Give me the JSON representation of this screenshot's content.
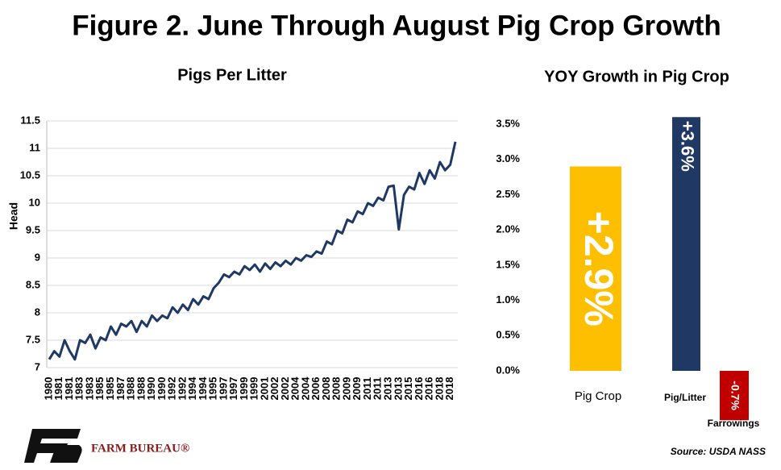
{
  "title": "Figure 2. June Through August Pig Crop Growth",
  "source": "Source:  USDA NASS",
  "logo_text": "FARM BUREAU®",
  "chart_data": [
    {
      "type": "line",
      "title": "Pigs Per Litter",
      "y_label": "Head",
      "color": "#1F3864",
      "ylim": [
        7,
        11.5
      ],
      "yticks": [
        7,
        7.5,
        8,
        8.5,
        9,
        9.5,
        10,
        10.5,
        11,
        11.5
      ],
      "categories": [
        "1980",
        null,
        "1981",
        null,
        "1981",
        null,
        "1983",
        null,
        "1983",
        null,
        "1985",
        null,
        "1985",
        null,
        "1987",
        null,
        "1988",
        null,
        "1988",
        null,
        "1990",
        null,
        "1990",
        null,
        "1992",
        null,
        "1992",
        null,
        "1994",
        null,
        "1994",
        null,
        "1995",
        null,
        "1997",
        null,
        "1997",
        null,
        "1999",
        null,
        "1999",
        null,
        "2001",
        null,
        "2002",
        null,
        "2002",
        null,
        "2004",
        null,
        "2004",
        null,
        "2006",
        null,
        "2008",
        null,
        "2008",
        null,
        "2009",
        null,
        "2009",
        null,
        "2011",
        null,
        "2011",
        null,
        "2013",
        null,
        "2013",
        null,
        "2015",
        null,
        "2016",
        null,
        "2016",
        null,
        "2018",
        null,
        "2018",
        null
      ],
      "values": [
        7.15,
        7.3,
        7.2,
        7.5,
        7.3,
        7.15,
        7.5,
        7.45,
        7.6,
        7.35,
        7.55,
        7.5,
        7.75,
        7.6,
        7.8,
        7.75,
        7.85,
        7.65,
        7.85,
        7.75,
        7.95,
        7.85,
        7.95,
        7.9,
        8.1,
        8.0,
        8.15,
        8.05,
        8.25,
        8.15,
        8.3,
        8.25,
        8.45,
        8.55,
        8.7,
        8.65,
        8.75,
        8.7,
        8.85,
        8.78,
        8.88,
        8.75,
        8.9,
        8.8,
        8.92,
        8.85,
        8.95,
        8.88,
        9.0,
        8.95,
        9.05,
        9.02,
        9.12,
        9.08,
        9.3,
        9.25,
        9.5,
        9.45,
        9.7,
        9.65,
        9.85,
        9.8,
        10.0,
        9.95,
        10.1,
        10.05,
        10.3,
        10.32,
        9.52,
        10.15,
        10.3,
        10.25,
        10.55,
        10.35,
        10.6,
        10.45,
        10.75,
        10.6,
        10.7,
        11.12
      ]
    },
    {
      "type": "bar",
      "title": "YOY Growth in Pig Crop",
      "ylim": [
        0,
        3.5
      ],
      "yticks": [
        {
          "value": 0,
          "label": "0.0%"
        },
        {
          "value": 0.5,
          "label": "0.5%"
        },
        {
          "value": 1,
          "label": "1.0%"
        },
        {
          "value": 1.5,
          "label": "1.5%"
        },
        {
          "value": 2,
          "label": "2.0%"
        },
        {
          "value": 2.5,
          "label": "2.5%"
        },
        {
          "value": 3,
          "label": "3.0%"
        },
        {
          "value": 3.5,
          "label": "3.5%"
        }
      ],
      "categories": [
        "Pig Crop",
        "Pig/Litter",
        "Farrowings"
      ],
      "values": [
        2.9,
        3.6,
        -0.7
      ],
      "value_labels": [
        "+2.9%",
        "+3.6%",
        "-0.7%"
      ],
      "colors": [
        "#FDBF00",
        "#1F3864",
        "#C00000"
      ]
    }
  ]
}
